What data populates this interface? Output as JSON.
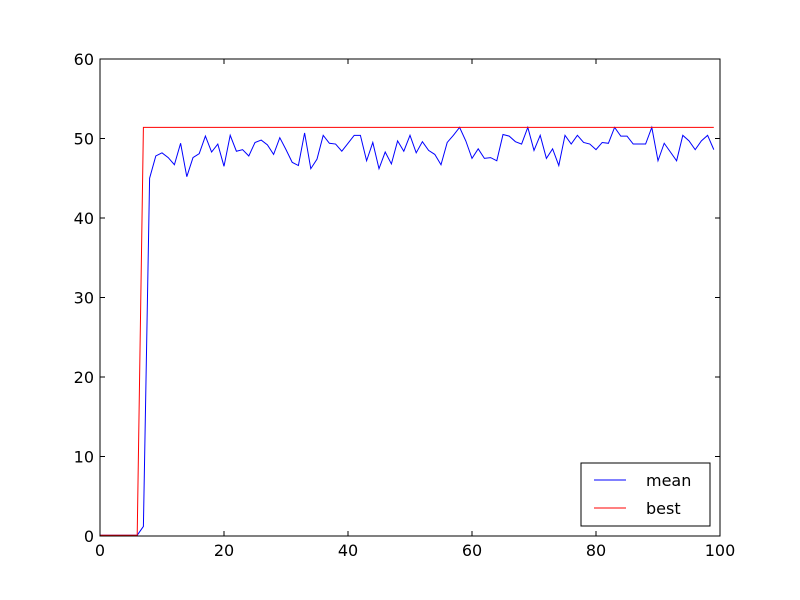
{
  "chart_data": {
    "type": "line",
    "title": "",
    "xlabel": "",
    "ylabel": "",
    "xlim": [
      0,
      100
    ],
    "ylim": [
      0,
      60
    ],
    "xticks": [
      0,
      20,
      40,
      60,
      80,
      100
    ],
    "yticks": [
      0,
      10,
      20,
      30,
      40,
      50,
      60
    ],
    "grid": false,
    "legend_position": "lower right",
    "series": [
      {
        "name": "mean",
        "color": "#0000ff",
        "x": [
          0,
          1,
          2,
          3,
          4,
          5,
          6,
          7,
          8,
          9,
          10,
          11,
          12,
          13,
          14,
          15,
          16,
          17,
          18,
          19,
          20,
          21,
          22,
          23,
          24,
          25,
          26,
          27,
          28,
          29,
          30,
          31,
          32,
          33,
          34,
          35,
          36,
          37,
          38,
          39,
          40,
          41,
          42,
          43,
          44,
          45,
          46,
          47,
          48,
          49,
          50,
          51,
          52,
          53,
          54,
          55,
          56,
          57,
          58,
          59,
          60,
          61,
          62,
          63,
          64,
          65,
          66,
          67,
          68,
          69,
          70,
          71,
          72,
          73,
          74,
          75,
          76,
          77,
          78,
          79,
          80,
          81,
          82,
          83,
          84,
          85,
          86,
          87,
          88,
          89,
          90,
          91,
          92,
          93,
          94,
          95,
          96,
          97,
          98,
          99
        ],
        "values": [
          0.1,
          0.1,
          0.1,
          0.1,
          0.1,
          0.1,
          0.1,
          1.2,
          45,
          47.8,
          48.2,
          47.6,
          46.7,
          49.4,
          45.2,
          47.6,
          48.1,
          50.3,
          48.3,
          49.3,
          46.5,
          50.4,
          48.4,
          48.6,
          47.8,
          49.5,
          49.8,
          49.2,
          48.0,
          50.1,
          48.6,
          47.0,
          46.6,
          50.7,
          46.2,
          47.4,
          50.4,
          49.4,
          49.3,
          48.4,
          49.4,
          50.4,
          50.4,
          47.2,
          49.5,
          46.2,
          48.3,
          46.8,
          49.7,
          48.4,
          50.4,
          48.2,
          49.6,
          48.5,
          48.0,
          46.7,
          49.5,
          50.4,
          51.4,
          49.7,
          47.5,
          48.7,
          47.5,
          47.6,
          47.2,
          50.5,
          50.3,
          49.6,
          49.3,
          51.4,
          48.5,
          50.4,
          47.5,
          48.7,
          46.6,
          50.4,
          49.3,
          50.4,
          49.5,
          49.3,
          48.6,
          49.5,
          49.4,
          51.4,
          50.3,
          50.3,
          49.3,
          49.3,
          49.3,
          51.4,
          47.2,
          49.4,
          48.3,
          47.2,
          50.4,
          49.7,
          48.6,
          49.7,
          50.4,
          48.6
        ]
      },
      {
        "name": "best",
        "color": "#ff0000",
        "x": [
          0,
          6,
          7,
          99
        ],
        "values": [
          0.1,
          0.1,
          51.4,
          51.4
        ]
      }
    ]
  }
}
